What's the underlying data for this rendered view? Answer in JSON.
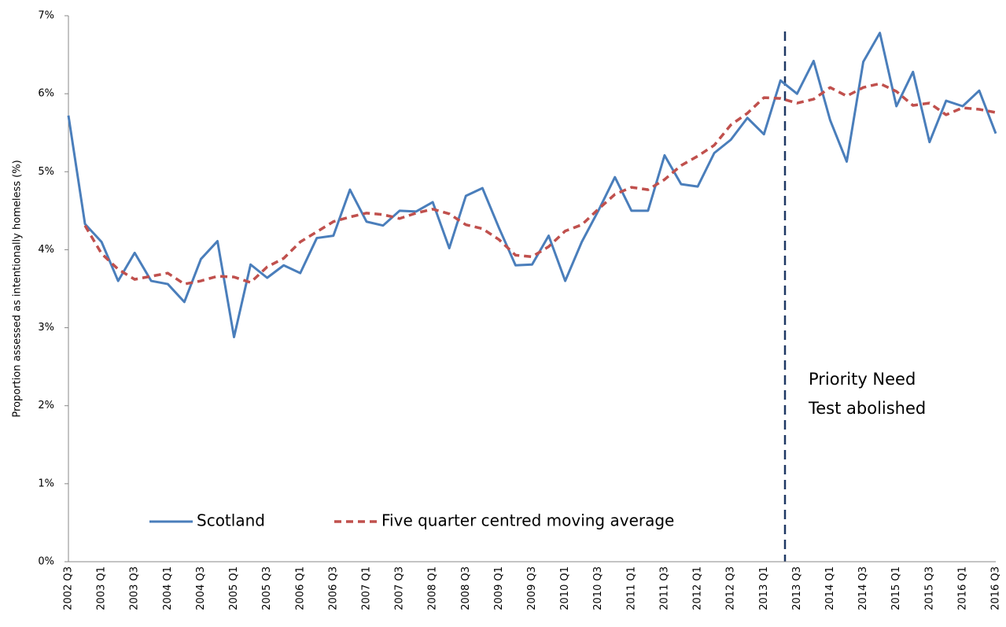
{
  "chart_data": {
    "type": "line",
    "y_label": "Proportion  assessed as intentionally homeless (%)",
    "categories": [
      "2002 Q3",
      null,
      "2003 Q1",
      null,
      "2003 Q3",
      null,
      "2004 Q1",
      null,
      "2004 Q3",
      null,
      "2005 Q1",
      null,
      "2005 Q3",
      null,
      "2006 Q1",
      null,
      "2006 Q3",
      null,
      "2007 Q1",
      null,
      "2007 Q3",
      null,
      "2008 Q1",
      null,
      "2008 Q3",
      null,
      "2009 Q1",
      null,
      "2009 Q3",
      null,
      "2010 Q1",
      null,
      "2010 Q3",
      null,
      "2011 Q1",
      null,
      "2011 Q3",
      null,
      "2012 Q1",
      null,
      "2012 Q3",
      null,
      "2013 Q1",
      null,
      "2013 Q3",
      null,
      "2014 Q1",
      null,
      "2014 Q3",
      null,
      "2015 Q1",
      null,
      "2015 Q3",
      null,
      "2016 Q1",
      null,
      "2016 Q3"
    ],
    "series": [
      {
        "name": "Scotland",
        "color": "#4a7ebb",
        "dashed": false,
        "values": [
          5.72,
          4.33,
          4.1,
          3.6,
          3.96,
          3.6,
          3.56,
          3.33,
          3.88,
          4.11,
          2.88,
          3.81,
          3.64,
          3.8,
          3.7,
          4.15,
          4.18,
          4.77,
          4.36,
          4.31,
          4.5,
          4.49,
          4.61,
          4.02,
          4.69,
          4.79,
          4.28,
          3.8,
          3.81,
          4.18,
          3.6,
          4.1,
          4.5,
          4.93,
          4.5,
          4.5,
          5.21,
          4.84,
          4.81,
          5.24,
          5.41,
          5.69,
          5.48,
          6.17,
          6.0,
          6.42,
          5.66,
          5.13,
          6.41,
          6.78,
          5.84,
          6.28,
          5.38,
          5.91,
          5.84,
          6.04,
          5.49
        ]
      },
      {
        "name": "Five quarter centred moving average",
        "color": "#c0504d",
        "dashed": true,
        "values": [
          null,
          4.31,
          3.95,
          3.75,
          3.62,
          3.66,
          3.7,
          3.56,
          3.6,
          3.66,
          3.65,
          3.58,
          3.78,
          3.89,
          4.1,
          4.23,
          4.36,
          4.42,
          4.47,
          4.45,
          4.4,
          4.47,
          4.52,
          4.46,
          4.32,
          4.27,
          4.13,
          3.93,
          3.91,
          4.04,
          4.24,
          4.32,
          4.52,
          4.71,
          4.8,
          4.77,
          4.9,
          5.08,
          5.2,
          5.34,
          5.6,
          5.75,
          5.95,
          5.94,
          5.88,
          5.93,
          6.08,
          5.97,
          6.08,
          6.13,
          6.03,
          5.85,
          5.88,
          5.73,
          5.82,
          5.8,
          5.76
        ]
      }
    ],
    "ylim": [
      0,
      7
    ],
    "yticks": [
      {
        "value": 0,
        "label": "0%"
      },
      {
        "value": 1,
        "label": "1%"
      },
      {
        "value": 2,
        "label": "2%"
      },
      {
        "value": 3,
        "label": "3%"
      },
      {
        "value": 4,
        "label": "4%"
      },
      {
        "value": 5,
        "label": "5%"
      },
      {
        "value": 6,
        "label": "6%"
      },
      {
        "value": 7,
        "label": "7%"
      }
    ],
    "grid": false,
    "legend": "bottom",
    "annotation": [
      "Priority Need",
      "Test abolished"
    ]
  }
}
